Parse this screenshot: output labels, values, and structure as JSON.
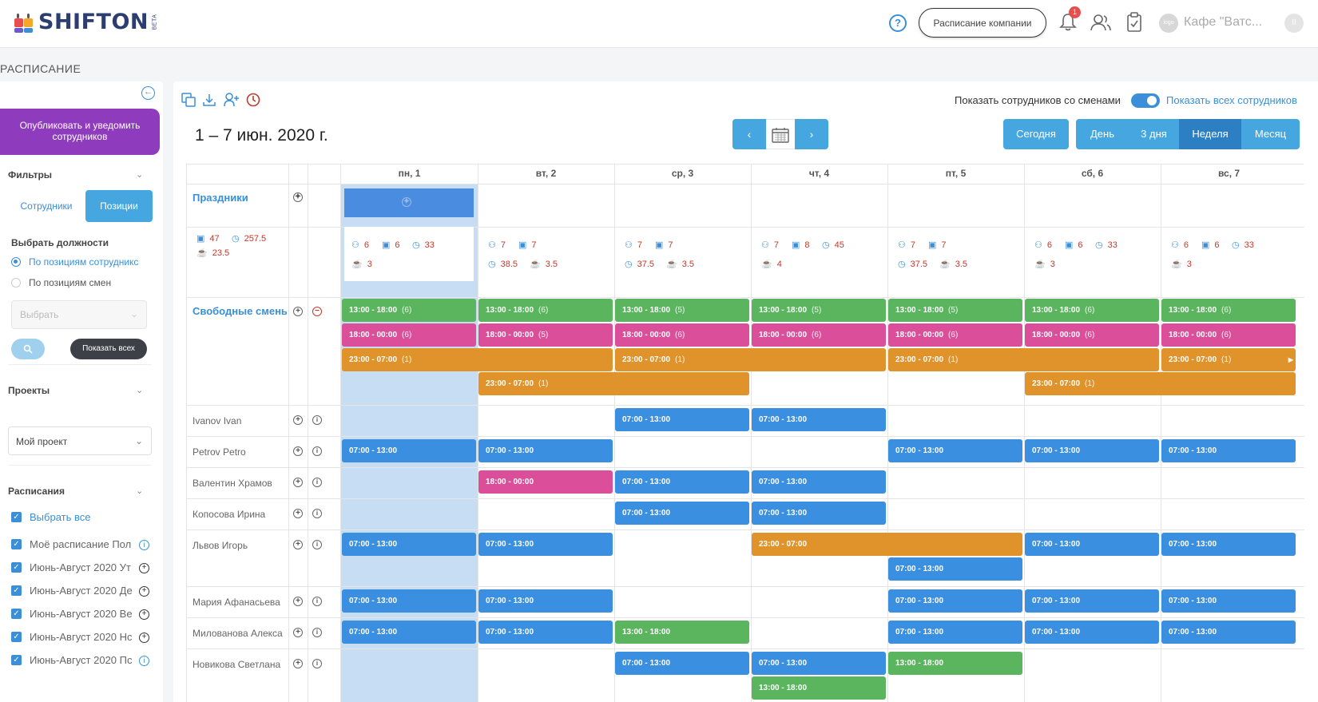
{
  "app": {
    "logo": "SHIFTON",
    "beta": "BETA",
    "company_button": "Расписание компании",
    "notifications_count": "1",
    "avatar_text": "logo",
    "company_name": "Кафе \"Ватс...",
    "collapse": "II"
  },
  "page_title": "РАСПИСАНИЕ",
  "sidebar": {
    "publish": "Опубликовать и уведомить сотрудников",
    "filters": "Фильтры",
    "tab_staff": "Сотрудники",
    "tab_positions": "Позиции",
    "choose_positions": "Выбрать должности",
    "radio_by_staff": "По позициям сотрудникс",
    "radio_by_shifts": "По позициям смен",
    "select_placeholder": "Выбрать",
    "show_all": "Показать всех",
    "projects": "Проекты",
    "project_value": "Мой проект",
    "schedules": "Расписания",
    "select_all": "Выбрать все",
    "schedule_items": [
      "Моё расписание Пол",
      "Июнь-Август 2020 Ут",
      "Июнь-Август 2020 Де",
      "Июнь-Август 2020 Ве",
      "Июнь-Август 2020 Нс",
      "Июнь-Август 2020 Пс"
    ]
  },
  "toolbar": {
    "date_range": "1 – 7 июн. 2020 г.",
    "prev": "‹",
    "next": "›",
    "show_with_shifts": "Показать сотрудников со сменами",
    "show_all_staff": "Показать всех сотрудников",
    "today": "Сегодня",
    "views": [
      "День",
      "3 дня",
      "Неделя",
      "Месяц"
    ]
  },
  "grid": {
    "days": [
      "пн, 1",
      "вт, 2",
      "ср, 3",
      "чт, 4",
      "пт, 5",
      "сб, 6",
      "вс, 7"
    ],
    "holidays_label": "Праздники",
    "free_shifts_label": "Свободные смены",
    "totals": {
      "people": "47",
      "hours": "257.5",
      "breaks": "23.5"
    },
    "day_stats": [
      {
        "people": "6",
        "shifts": "6",
        "hours": "33",
        "breaks": "3"
      },
      {
        "people": "7",
        "shifts": "7",
        "hours": "38.5",
        "breaks": "3.5"
      },
      {
        "people": "7",
        "shifts": "7",
        "hours": "37.5",
        "breaks": "3.5"
      },
      {
        "people": "7",
        "shifts": "8",
        "hours": "45",
        "breaks": "4"
      },
      {
        "people": "7",
        "shifts": "7",
        "hours": "37.5",
        "breaks": "3.5"
      },
      {
        "people": "6",
        "shifts": "6",
        "hours": "33",
        "breaks": "3"
      },
      {
        "people": "6",
        "shifts": "6",
        "hours": "33",
        "breaks": "3"
      }
    ],
    "free_green": [
      "(6)",
      "(6)",
      "(5)",
      "(5)",
      "(5)",
      "(6)",
      "(6)"
    ],
    "free_pink": [
      "(6)",
      "(5)",
      "(6)",
      "(6)",
      "(6)",
      "(6)",
      "(6)"
    ],
    "shift_1318": "13:00 - 18:00",
    "shift_1800": "18:00 - 00:00",
    "shift_2307": "23:00 - 07:00",
    "shift_0713": "07:00 - 13:00",
    "one": "(1)",
    "employees": [
      "Ivanov Ivan",
      "Petrov Petro",
      "Валентин Храмов",
      "Копосова Ирина",
      "Львов Игорь",
      "Мария Афанасьева",
      "Милованова Алекса",
      "Новикова Светлана"
    ]
  },
  "colors": {
    "green": "#5ab55e",
    "pink": "#db4f9a",
    "orange": "#e0922b",
    "blue": "#3a8fe0",
    "purple": "#8e3cbd"
  }
}
